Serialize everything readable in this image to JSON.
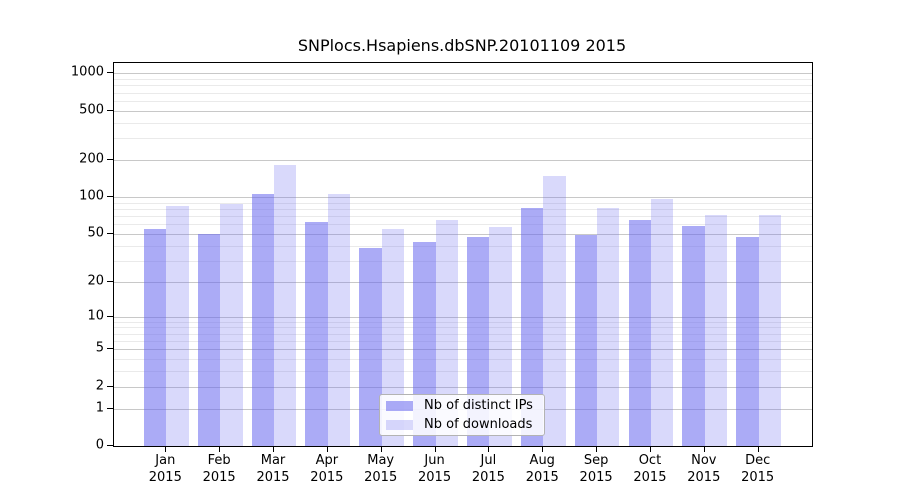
{
  "chart_data": {
    "type": "bar",
    "title": "SNPlocs.Hsapiens.dbSNP.20101109 2015",
    "categories": [
      "Jan",
      "Feb",
      "Mar",
      "Apr",
      "May",
      "Jun",
      "Jul",
      "Aug",
      "Sep",
      "Oct",
      "Nov",
      "Dec"
    ],
    "year_label": "2015",
    "series": [
      {
        "name": "Nb of distinct IPs",
        "color": "rgba(102,102,238,0.55)",
        "values": [
          55,
          50,
          106,
          62,
          38,
          43,
          47,
          81,
          49,
          65,
          58,
          47
        ]
      },
      {
        "name": "Nb of downloads",
        "color": "rgba(102,102,238,0.25)",
        "values": [
          84,
          88,
          183,
          106,
          55,
          65,
          57,
          148,
          81,
          97,
          72,
          72
        ]
      }
    ],
    "y_axis": {
      "scale": "log10(value+1)",
      "major_ticks": [
        0,
        1,
        2,
        5,
        10,
        20,
        50,
        100,
        200,
        500,
        1000
      ],
      "minor_gridlines": [
        3,
        4,
        6,
        7,
        8,
        9,
        30,
        40,
        60,
        70,
        80,
        90,
        300,
        400,
        600,
        700,
        800,
        900
      ],
      "ylim": [
        0,
        1000
      ]
    },
    "legend": {
      "position": "inside-bottom-center"
    },
    "grid": true,
    "colors": {
      "major_gridline": "#c8c8c8",
      "minor_gridline": "#eaeaea",
      "spine": "#000000",
      "background": "#ffffff"
    }
  }
}
